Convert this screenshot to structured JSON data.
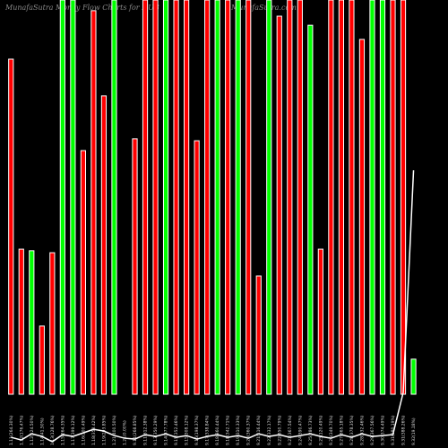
{
  "chart_data": {
    "type": "bar",
    "title": "MunafaSutra Money Flow Charts for HUB",
    "subtitle": "MunafaSutra.com",
    "categories": [
      "1.11(264.30%)",
      "1.12(176.47%)",
      "1.12(124.50%)",
      "1.14(41.50%)",
      "1.13(128.76%)",
      "1.15(264.35%)",
      "1.17(399.12%)",
      "1.16(200.49%)",
      "1.18(358.42%)",
      "1.19(293.85%)",
      "1.21(400.50%)",
      "1.21(0.00%)",
      "9.11(268.85%)",
      "9.11(312.38%)",
      "9.13(350.29%)",
      "9.14(377.78%)",
      "9.15(352.46%)",
      "9.15(308.12%)",
      "9.16(198.37%)",
      "9.17(338.84%)",
      "9.18(360.44%)",
      "9.18(342.71%)",
      "9.19(310.33%)",
      "9.20(360.37%)",
      "9.21(116.44%)",
      "9.22(332.17%)",
      "9.22(350.79%)",
      "9.23(367.54%)",
      "9.24(390.47%)",
      "9.25(286.73%)",
      "9.25(120.49%)",
      "9.26(349.70%)",
      "9.27(365.18%)",
      "9.28(378.35%)",
      "9.28(332.46%)",
      "9.29(367.56%)",
      "9.30(374.49%)",
      "9.31(380.19%)",
      "9.31(388.26%)",
      "9.32(19.18%)"
    ],
    "values": [
      85,
      36.8,
      36.4,
      17.3,
      35.9,
      100,
      100,
      61.8,
      97.3,
      75.7,
      100,
      0,
      64.8,
      100,
      100,
      100,
      100,
      100,
      64.3,
      100,
      100,
      100,
      100,
      100,
      30,
      100,
      95.9,
      100,
      100,
      93.6,
      36.8,
      100,
      100,
      100,
      90,
      100,
      100,
      100,
      100,
      8.9
    ],
    "colors": [
      "#ff0000",
      "#ff0000",
      "#00ff00",
      "#ff0000",
      "#ff0000",
      "#00ff00",
      "#00ff00",
      "#ff0000",
      "#ff0000",
      "#ff0000",
      "#00ff00",
      "#ff0000",
      "#ff0000",
      "#ff0000",
      "#ff0000",
      "#00ff00",
      "#ff0000",
      "#ff0000",
      "#ff0000",
      "#ff0000",
      "#00ff00",
      "#ff0000",
      "#00ff00",
      "#ff0000",
      "#ff0000",
      "#00ff00",
      "#ff0000",
      "#ff0000",
      "#ff0000",
      "#00ff00",
      "#ff0000",
      "#ff0000",
      "#ff0000",
      "#ff0000",
      "#ff0000",
      "#00ff00",
      "#00ff00",
      "#ff0000",
      "#ff0000",
      "#00ff00"
    ],
    "ylim": [
      0,
      100
    ],
    "line_color": "#ffffff",
    "line_values": [
      1.4,
      0.8,
      2.2,
      1.6,
      0.4,
      2.0,
      1.6,
      2.4,
      3.2,
      2.8,
      1.8,
      1.2,
      1.0,
      2.0,
      1.6,
      2.2,
      1.4,
      1.8,
      1.0,
      1.6,
      2.0,
      1.4,
      1.8,
      1.2,
      2.2,
      1.6,
      2.0,
      1.4,
      1.8,
      2.2,
      1.6,
      1.2,
      2.0,
      1.4,
      2.2,
      1.6,
      1.8,
      2.0,
      11.5,
      61.6
    ],
    "y2lim": [
      0,
      100
    ]
  }
}
